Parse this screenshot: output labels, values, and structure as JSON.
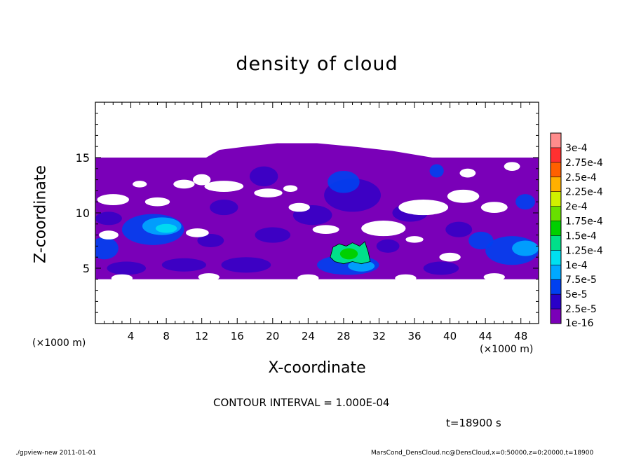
{
  "chart_data": {
    "type": "heatmap",
    "title": "density of cloud",
    "xlabel": "X-coordinate",
    "ylabel": "Z-coordinate",
    "x_unit": "(×1000 m)",
    "y_unit": "(×1000 m)",
    "xlim": [
      0,
      50
    ],
    "ylim": [
      0,
      20
    ],
    "x_ticks": [
      4,
      8,
      12,
      16,
      20,
      24,
      28,
      32,
      36,
      40,
      44,
      48
    ],
    "y_ticks": [
      5,
      10,
      15
    ],
    "contour_interval": "CONTOUR INTERVAL = 1.000E-04",
    "time_label": "t=18900 s",
    "colorbar": [
      {
        "label": "1e-16",
        "color": "#7a00b8"
      },
      {
        "label": "2.5e-5",
        "color": "#2a00c8"
      },
      {
        "label": "5e-5",
        "color": "#0040f0"
      },
      {
        "label": "7.5e-5",
        "color": "#00a8ff"
      },
      {
        "label": "1e-4",
        "color": "#00e0f0"
      },
      {
        "label": "1.25e-4",
        "color": "#00e08a"
      },
      {
        "label": "1.5e-4",
        "color": "#00d000"
      },
      {
        "label": "1.75e-4",
        "color": "#68e000"
      },
      {
        "label": "2e-4",
        "color": "#d0f000"
      },
      {
        "label": "2.25e-4",
        "color": "#ffb000"
      },
      {
        "label": "2.5e-4",
        "color": "#ff6000"
      },
      {
        "label": "2.75e-4",
        "color": "#ff3030"
      },
      {
        "label": "3e-4",
        "color": "#ff8c8c"
      }
    ],
    "cloud_base_z": 4,
    "cloud_top_z": 15,
    "cloud_dome": {
      "x_start": 12.5,
      "x_end": 38,
      "z_max": 16.3
    }
  },
  "footer": {
    "left": "./gpview-new   2011-01-01",
    "right": "MarsCond_DensCloud.nc@DensCloud,x=0:50000,z=0:20000,t=18900"
  }
}
